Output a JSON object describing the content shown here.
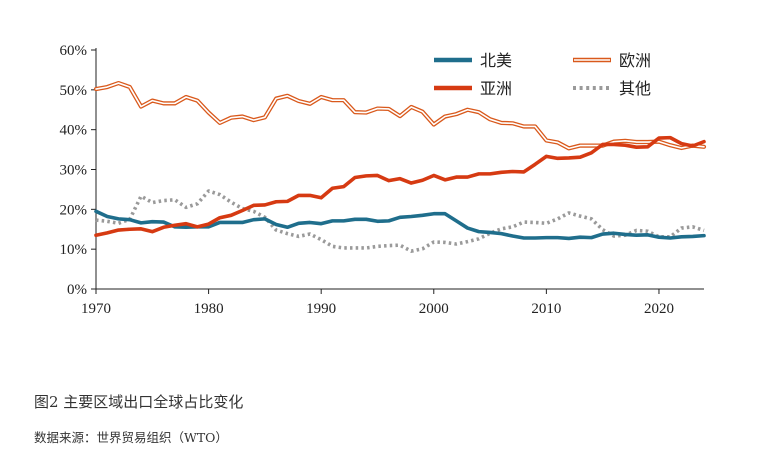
{
  "caption": "图2   主要区域出口全球占比变化",
  "source": "数据来源：世界贸易组织（WTO）",
  "chart_data": {
    "type": "line",
    "title": "",
    "xlabel": "",
    "ylabel": "",
    "xlim": [
      1970,
      2024
    ],
    "ylim": [
      0,
      60
    ],
    "x_ticks": [
      "1970",
      "1980",
      "1990",
      "2000",
      "2010",
      "2020"
    ],
    "y_ticks": [
      "0%",
      "10%",
      "20%",
      "30%",
      "40%",
      "50%",
      "60%"
    ],
    "grid": false,
    "legend_position": "top-right",
    "x": [
      1970,
      1971,
      1972,
      1973,
      1974,
      1975,
      1976,
      1977,
      1978,
      1979,
      1980,
      1981,
      1982,
      1983,
      1984,
      1985,
      1986,
      1987,
      1988,
      1989,
      1990,
      1991,
      1992,
      1993,
      1994,
      1995,
      1996,
      1997,
      1998,
      1999,
      2000,
      2001,
      2002,
      2003,
      2004,
      2005,
      2006,
      2007,
      2008,
      2009,
      2010,
      2011,
      2012,
      2013,
      2014,
      2015,
      2016,
      2017,
      2018,
      2019,
      2020,
      2021,
      2022,
      2023,
      2024
    ],
    "series": [
      {
        "name": "北美",
        "color": "#1f6e8c",
        "style": "solid",
        "values": [
          19.5,
          18.2,
          17.6,
          17.4,
          16.6,
          16.9,
          16.8,
          15.6,
          15.5,
          15.6,
          15.6,
          16.7,
          16.7,
          16.7,
          17.4,
          17.6,
          16.2,
          15.5,
          16.5,
          16.7,
          16.4,
          17.1,
          17.1,
          17.5,
          17.5,
          17.0,
          17.1,
          18.0,
          18.2,
          18.5,
          18.9,
          18.9,
          17.1,
          15.3,
          14.4,
          14.2,
          13.9,
          13.3,
          12.8,
          12.8,
          12.9,
          12.9,
          12.7,
          13.0,
          12.9,
          13.8,
          14.0,
          13.7,
          13.5,
          13.6,
          13.0,
          12.8,
          13.1,
          13.2,
          13.4
        ]
      },
      {
        "name": "欧洲",
        "color": "#d9591c",
        "style": "double",
        "values": [
          50.2,
          50.7,
          51.7,
          50.7,
          45.8,
          47.3,
          46.6,
          46.6,
          48.2,
          47.3,
          44.3,
          41.7,
          43.0,
          43.3,
          42.4,
          43.1,
          47.8,
          48.5,
          47.2,
          46.5,
          48.2,
          47.4,
          47.4,
          44.4,
          44.3,
          45.3,
          45.2,
          43.4,
          45.7,
          44.5,
          41.3,
          43.3,
          43.9,
          45.0,
          44.4,
          42.6,
          41.7,
          41.6,
          40.8,
          40.8,
          37.3,
          36.8,
          35.3,
          36.0,
          36.0,
          36.0,
          37.0,
          37.2,
          36.9,
          36.9,
          37.0,
          36.1,
          35.4,
          36.0,
          35.7
        ]
      },
      {
        "name": "亚洲",
        "color": "#d63a12",
        "style": "solid",
        "values": [
          13.5,
          14.1,
          14.8,
          15.0,
          15.1,
          14.4,
          15.5,
          16.0,
          16.4,
          15.6,
          16.3,
          17.9,
          18.5,
          19.7,
          21.0,
          21.1,
          21.9,
          22.0,
          23.5,
          23.5,
          22.9,
          25.3,
          25.7,
          28.0,
          28.4,
          28.5,
          27.2,
          27.7,
          26.6,
          27.3,
          28.5,
          27.4,
          28.1,
          28.1,
          28.9,
          28.9,
          29.3,
          29.5,
          29.4,
          31.3,
          33.3,
          32.8,
          32.9,
          33.1,
          34.2,
          36.3,
          36.3,
          36.1,
          35.6,
          35.7,
          37.9,
          38.0,
          36.5,
          35.9,
          37.0
        ]
      },
      {
        "name": "其他",
        "color": "#9a9a9a",
        "style": "dotted",
        "values": [
          17.3,
          17.0,
          16.5,
          17.5,
          23.3,
          21.7,
          22.2,
          22.4,
          20.5,
          21.4,
          24.6,
          23.7,
          21.8,
          20.2,
          19.5,
          18.0,
          14.8,
          13.9,
          13.2,
          13.8,
          12.4,
          10.7,
          10.3,
          10.3,
          10.3,
          10.7,
          10.9,
          11.0,
          9.5,
          10.1,
          11.8,
          11.7,
          11.3,
          11.9,
          12.6,
          14.0,
          15.1,
          15.6,
          16.8,
          16.7,
          16.5,
          17.6,
          19.1,
          18.3,
          17.6,
          14.9,
          13.3,
          13.5,
          14.7,
          14.5,
          13.1,
          13.1,
          15.3,
          15.6,
          14.7
        ]
      }
    ]
  }
}
